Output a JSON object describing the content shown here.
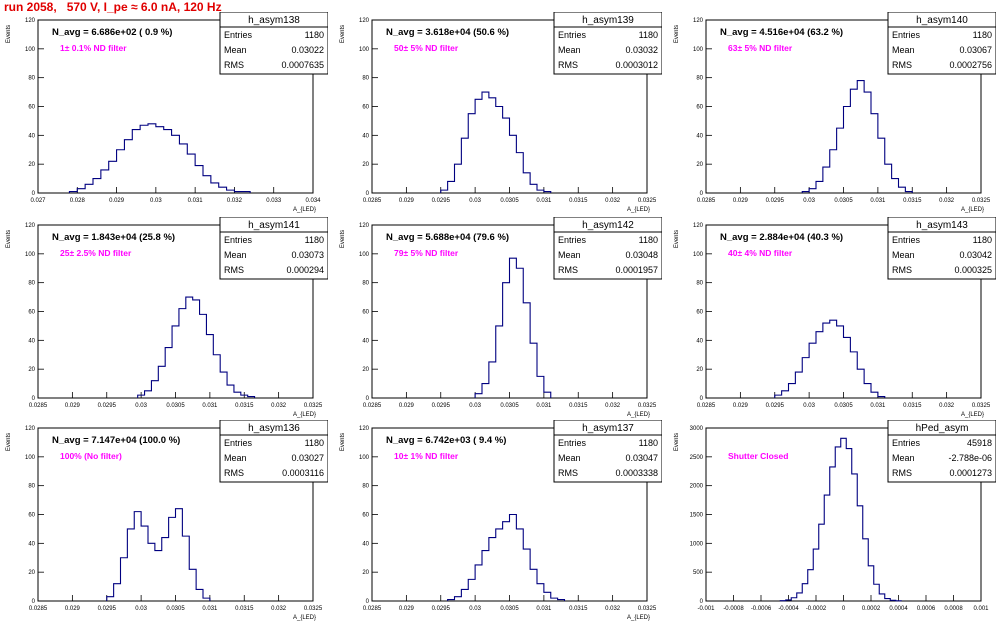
{
  "canvas_title": "run 2058,   570 V, I_pe ≈ 6.0 nA, 120 Hz",
  "colors": {
    "title": "#e00000",
    "line": "#000080",
    "filter_label": "#ff00ff"
  },
  "chart_data": [
    {
      "type": "histogram",
      "hist_name": "h_asym138",
      "stats": [
        [
          "Entries",
          "1180"
        ],
        [
          "Mean",
          "0.03022"
        ],
        [
          "RMS",
          "0.0007635"
        ]
      ],
      "navg_text": "N_avg = 6.686e+02 ( 0.9 %)",
      "filter_text": "1± 0.1% ND filter",
      "ylabel": "Events",
      "xlabel": "A_{LED}",
      "xlim": [
        0.027,
        0.034
      ],
      "ylim": [
        0,
        120
      ],
      "xticks": [
        "0.027",
        "0.028",
        "0.029",
        "0.03",
        "0.031",
        "0.032",
        "0.033",
        "0.034"
      ],
      "yticks": [
        "0",
        "20",
        "40",
        "60",
        "80",
        "100",
        "120"
      ],
      "x": [
        0.0279,
        0.0281,
        0.0283,
        0.0285,
        0.0287,
        0.0289,
        0.0291,
        0.0293,
        0.0295,
        0.0297,
        0.0299,
        0.0301,
        0.0303,
        0.0305,
        0.0307,
        0.0309,
        0.0311,
        0.0313,
        0.0315,
        0.0317,
        0.0319,
        0.0321,
        0.0323
      ],
      "values": [
        1,
        3,
        6,
        10,
        16,
        22,
        30,
        37,
        44,
        47,
        48,
        46,
        44,
        40,
        34,
        27,
        19,
        12,
        7,
        4,
        2,
        1,
        1
      ]
    },
    {
      "type": "histogram",
      "hist_name": "h_asym139",
      "stats": [
        [
          "Entries",
          "1180"
        ],
        [
          "Mean",
          "0.03032"
        ],
        [
          "RMS",
          "0.0003012"
        ]
      ],
      "navg_text": "N_avg = 3.618e+04 (50.6 %)",
      "filter_text": "50± 5% ND filter",
      "ylabel": "Events",
      "xlabel": "A_{LED}",
      "xlim": [
        0.0285,
        0.0325
      ],
      "ylim": [
        0,
        120
      ],
      "xticks": [
        "0.0285",
        "0.029",
        "0.0295",
        "0.03",
        "0.0305",
        "0.031",
        "0.0315",
        "0.032",
        "0.0325"
      ],
      "yticks": [
        "0",
        "20",
        "40",
        "60",
        "80",
        "100",
        "120"
      ],
      "x": [
        0.02955,
        0.02965,
        0.02975,
        0.02985,
        0.02995,
        0.03005,
        0.03015,
        0.03025,
        0.03035,
        0.03045,
        0.03055,
        0.03065,
        0.03075,
        0.03085,
        0.03095,
        0.03105
      ],
      "values": [
        2,
        8,
        20,
        38,
        55,
        65,
        70,
        66,
        60,
        52,
        40,
        28,
        14,
        6,
        2,
        1
      ]
    },
    {
      "type": "histogram",
      "hist_name": "h_asym140",
      "stats": [
        [
          "Entries",
          "1180"
        ],
        [
          "Mean",
          "0.03067"
        ],
        [
          "RMS",
          "0.0002756"
        ]
      ],
      "navg_text": "N_avg = 4.516e+04 (63.2 %)",
      "filter_text": "63± 5% ND filter",
      "ylabel": "Events",
      "xlabel": "A_{LED}",
      "xlim": [
        0.0285,
        0.0325
      ],
      "ylim": [
        0,
        120
      ],
      "xticks": [
        "0.0285",
        "0.029",
        "0.0295",
        "0.03",
        "0.0305",
        "0.031",
        "0.0315",
        "0.032",
        "0.0325"
      ],
      "yticks": [
        "0",
        "20",
        "40",
        "60",
        "80",
        "100",
        "120"
      ],
      "x": [
        0.02995,
        0.03005,
        0.03015,
        0.03025,
        0.03035,
        0.03045,
        0.03055,
        0.03065,
        0.03075,
        0.03085,
        0.03095,
        0.03105,
        0.03115,
        0.03125,
        0.03135,
        0.03145
      ],
      "values": [
        1,
        3,
        8,
        18,
        30,
        45,
        60,
        72,
        78,
        70,
        55,
        38,
        20,
        10,
        4,
        1
      ]
    },
    {
      "type": "histogram",
      "hist_name": "h_asym141",
      "stats": [
        [
          "Entries",
          "1180"
        ],
        [
          "Mean",
          "0.03073"
        ],
        [
          "RMS",
          "0.000294"
        ]
      ],
      "navg_text": "N_avg = 1.843e+04 (25.8 %)",
      "filter_text": "25± 2.5% ND filter",
      "ylabel": "Events",
      "xlabel": "A_{LED}",
      "xlim": [
        0.0285,
        0.0325
      ],
      "ylim": [
        0,
        120
      ],
      "xticks": [
        "0.0285",
        "0.029",
        "0.0295",
        "0.03",
        "0.0305",
        "0.031",
        "0.0315",
        "0.032",
        "0.0325"
      ],
      "yticks": [
        "0",
        "20",
        "40",
        "60",
        "80",
        "100",
        "120"
      ],
      "x": [
        0.03,
        0.0301,
        0.0302,
        0.0303,
        0.0304,
        0.0305,
        0.0306,
        0.0307,
        0.0308,
        0.0309,
        0.031,
        0.0311,
        0.0312,
        0.0313,
        0.0314,
        0.0315,
        0.0316
      ],
      "values": [
        2,
        5,
        12,
        22,
        35,
        50,
        62,
        70,
        68,
        58,
        44,
        30,
        18,
        9,
        4,
        2,
        1
      ]
    },
    {
      "type": "histogram",
      "hist_name": "h_asym142",
      "stats": [
        [
          "Entries",
          "1180"
        ],
        [
          "Mean",
          "0.03048"
        ],
        [
          "RMS",
          "0.0001957"
        ]
      ],
      "navg_text": "N_avg = 5.688e+04 (79.6 %)",
      "filter_text": "79± 5% ND filter",
      "ylabel": "Events",
      "xlabel": "A_{LED}",
      "xlim": [
        0.0285,
        0.0325
      ],
      "ylim": [
        0,
        120
      ],
      "xticks": [
        "0.0285",
        "0.029",
        "0.0295",
        "0.03",
        "0.0305",
        "0.031",
        "0.0315",
        "0.032",
        "0.0325"
      ],
      "yticks": [
        "0",
        "20",
        "40",
        "60",
        "80",
        "100",
        "120"
      ],
      "x": [
        0.03005,
        0.03015,
        0.03025,
        0.03035,
        0.03045,
        0.03055,
        0.03065,
        0.03075,
        0.03085,
        0.03095,
        0.03105
      ],
      "values": [
        3,
        10,
        25,
        50,
        80,
        97,
        90,
        66,
        38,
        15,
        4
      ]
    },
    {
      "type": "histogram",
      "hist_name": "h_asym143",
      "stats": [
        [
          "Entries",
          "1180"
        ],
        [
          "Mean",
          "0.03042"
        ],
        [
          "RMS",
          "0.000325"
        ]
      ],
      "navg_text": "N_avg = 2.884e+04 (40.3 %)",
      "filter_text": "40± 4% ND filter",
      "ylabel": "Events",
      "xlabel": "A_{LED}",
      "xlim": [
        0.0285,
        0.0325
      ],
      "ylim": [
        0,
        120
      ],
      "xticks": [
        "0.0285",
        "0.029",
        "0.0295",
        "0.03",
        "0.0305",
        "0.031",
        "0.0315",
        "0.032",
        "0.0325"
      ],
      "yticks": [
        "0",
        "20",
        "40",
        "60",
        "80",
        "100",
        "120"
      ],
      "x": [
        0.02955,
        0.02965,
        0.02975,
        0.02985,
        0.02995,
        0.03005,
        0.03015,
        0.03025,
        0.03035,
        0.03045,
        0.03055,
        0.03065,
        0.03075,
        0.03085,
        0.03095,
        0.03105
      ],
      "values": [
        2,
        5,
        10,
        18,
        28,
        38,
        46,
        52,
        54,
        50,
        42,
        32,
        20,
        10,
        4,
        1
      ]
    },
    {
      "type": "histogram",
      "hist_name": "h_asym136",
      "stats": [
        [
          "Entries",
          "1180"
        ],
        [
          "Mean",
          "0.03027"
        ],
        [
          "RMS",
          "0.0003116"
        ]
      ],
      "navg_text": "N_avg = 7.147e+04 (100.0 %)",
      "filter_text": "100% (No filter)",
      "ylabel": "Events",
      "xlabel": "A_{LED}",
      "xlim": [
        0.0285,
        0.0325
      ],
      "ylim": [
        0,
        120
      ],
      "xticks": [
        "0.0285",
        "0.029",
        "0.0295",
        "0.03",
        "0.0305",
        "0.031",
        "0.0315",
        "0.032",
        "0.0325"
      ],
      "yticks": [
        "0",
        "20",
        "40",
        "60",
        "80",
        "100",
        "120"
      ],
      "x": [
        0.02955,
        0.02965,
        0.02975,
        0.02985,
        0.02995,
        0.03005,
        0.03015,
        0.03025,
        0.03035,
        0.03045,
        0.03055,
        0.03065,
        0.03075,
        0.03085,
        0.03095
      ],
      "values": [
        3,
        12,
        30,
        50,
        62,
        52,
        40,
        35,
        44,
        58,
        64,
        45,
        22,
        8,
        2
      ]
    },
    {
      "type": "histogram",
      "hist_name": "h_asym137",
      "stats": [
        [
          "Entries",
          "1180"
        ],
        [
          "Mean",
          "0.03047"
        ],
        [
          "RMS",
          "0.0003338"
        ]
      ],
      "navg_text": "N_avg = 6.742e+03 ( 9.4 %)",
      "filter_text": "10± 1% ND filter",
      "ylabel": "Events",
      "xlabel": "A_{LED}",
      "xlim": [
        0.0285,
        0.0325
      ],
      "ylim": [
        0,
        120
      ],
      "xticks": [
        "0.0285",
        "0.029",
        "0.0295",
        "0.03",
        "0.0305",
        "0.031",
        "0.0315",
        "0.032",
        "0.0325"
      ],
      "yticks": [
        "0",
        "20",
        "40",
        "60",
        "80",
        "100",
        "120"
      ],
      "x": [
        0.02965,
        0.02975,
        0.02985,
        0.02995,
        0.03005,
        0.03015,
        0.03025,
        0.03035,
        0.03045,
        0.03055,
        0.03065,
        0.03075,
        0.03085,
        0.03095,
        0.03105,
        0.03115,
        0.03125
      ],
      "values": [
        1,
        3,
        8,
        15,
        25,
        35,
        44,
        50,
        55,
        60,
        50,
        36,
        22,
        12,
        6,
        2,
        1
      ]
    },
    {
      "type": "histogram",
      "hist_name": "hPed_asym",
      "stats": [
        [
          "Entries",
          "45918"
        ],
        [
          "Mean",
          "-2.788e-06"
        ],
        [
          "RMS",
          "0.0001273"
        ]
      ],
      "navg_text": "",
      "filter_text": "Shutter Closed",
      "ylabel": "Events",
      "xlabel": "",
      "xlim": [
        -0.001,
        0.001
      ],
      "ylim": [
        0,
        3200
      ],
      "xticks": [
        "-0.001",
        "-0.0008",
        "-0.0006",
        "-0.0004",
        "-0.0002",
        "0",
        "0.0002",
        "0.0004",
        "0.0006",
        "0.0008",
        "0.001"
      ],
      "yticks": [
        "0",
        "500",
        "1000",
        "1500",
        "2000",
        "2500",
        "3000"
      ],
      "x": [
        -0.00044,
        -0.0004,
        -0.00036,
        -0.00032,
        -0.00028,
        -0.00024,
        -0.0002,
        -0.00016,
        -0.00012,
        -8e-05,
        -4e-05,
        0,
        4e-05,
        8e-05,
        0.00012,
        0.00016,
        0.0002,
        0.00024,
        0.00028,
        0.00032,
        0.00036,
        0.0004
      ],
      "values": [
        5,
        20,
        60,
        150,
        320,
        580,
        960,
        1420,
        1960,
        2480,
        2850,
        3010,
        2820,
        2350,
        1760,
        1150,
        650,
        310,
        130,
        45,
        12,
        3
      ]
    }
  ]
}
